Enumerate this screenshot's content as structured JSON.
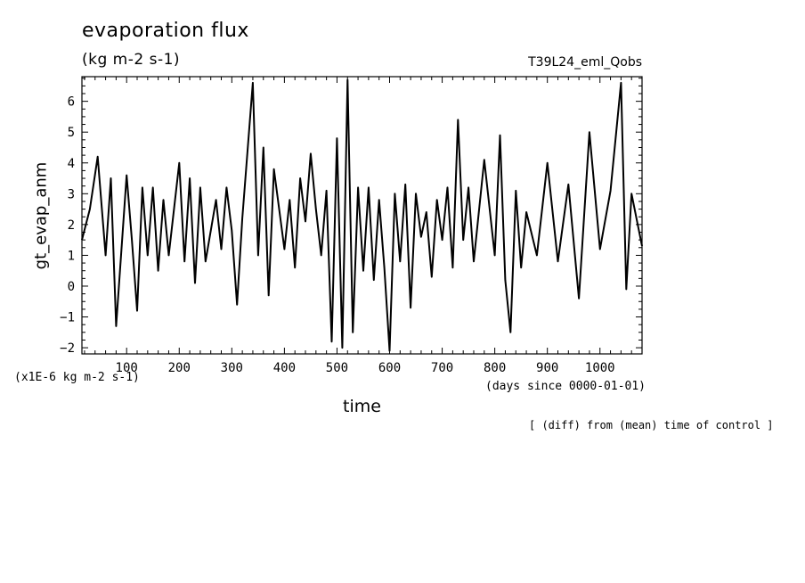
{
  "chart_data": {
    "type": "line",
    "title": "evaporation flux",
    "subtitle": "(kg m-2 s-1)",
    "run_label": "T39L24_eml_Qobs",
    "xlabel": "time",
    "x_unit_note": "(days since 0000-01-01)",
    "ylabel": "gt_evap_anm",
    "y_scale_note": "(x1E-6 kg m-2 s-1)",
    "footnote": "[ (diff) from (mean) time of control ]",
    "xlim": [
      15,
      1080
    ],
    "ylim": [
      -2.2,
      6.8
    ],
    "x_ticks": [
      100,
      200,
      300,
      400,
      500,
      600,
      700,
      800,
      900,
      1000
    ],
    "y_ticks": [
      -2,
      -1,
      0,
      1,
      2,
      3,
      4,
      5,
      6
    ],
    "grid": false,
    "line_color": "#000000",
    "series": [
      {
        "x": [
          15,
          30,
          45,
          60,
          70,
          80,
          100,
          110,
          120,
          130,
          140,
          150,
          160,
          170,
          180,
          200,
          210,
          220,
          230,
          240,
          250,
          270,
          280,
          290,
          300,
          310,
          320,
          340,
          350,
          360,
          370,
          380,
          400,
          410,
          420,
          430,
          440,
          450,
          460,
          470,
          480,
          490,
          500,
          510,
          520,
          530,
          540,
          550,
          560,
          570,
          580,
          590,
          600,
          610,
          620,
          630,
          640,
          650,
          660,
          670,
          680,
          690,
          700,
          710,
          720,
          730,
          740,
          750,
          760,
          780,
          800,
          810,
          820,
          830,
          840,
          850,
          860,
          880,
          900,
          920,
          940,
          960,
          980,
          1000,
          1020,
          1040,
          1050,
          1060,
          1080
        ],
        "y": [
          1.5,
          2.5,
          4.2,
          1.0,
          3.5,
          -1.3,
          3.6,
          1.5,
          -0.8,
          3.2,
          1.0,
          3.2,
          0.5,
          2.8,
          1.0,
          4.0,
          0.8,
          3.5,
          0.1,
          3.2,
          0.8,
          2.8,
          1.2,
          3.2,
          1.8,
          -0.6,
          2.2,
          6.6,
          1.0,
          4.5,
          -0.3,
          3.8,
          1.2,
          2.8,
          0.6,
          3.5,
          2.1,
          4.3,
          2.5,
          1.0,
          3.1,
          -1.8,
          4.8,
          -2.0,
          6.7,
          -1.5,
          3.2,
          0.5,
          3.2,
          0.2,
          2.8,
          0.6,
          -2.1,
          3.0,
          0.8,
          3.3,
          -0.7,
          3.0,
          1.6,
          2.4,
          0.3,
          2.8,
          1.5,
          3.2,
          0.6,
          5.4,
          1.5,
          3.2,
          0.8,
          4.1,
          1.0,
          4.9,
          0.2,
          -1.5,
          3.1,
          0.6,
          2.4,
          1.0,
          4.0,
          0.8,
          3.3,
          -0.4,
          5.0,
          1.2,
          3.1,
          6.6,
          -0.1,
          3.0,
          1.3
        ]
      }
    ]
  }
}
